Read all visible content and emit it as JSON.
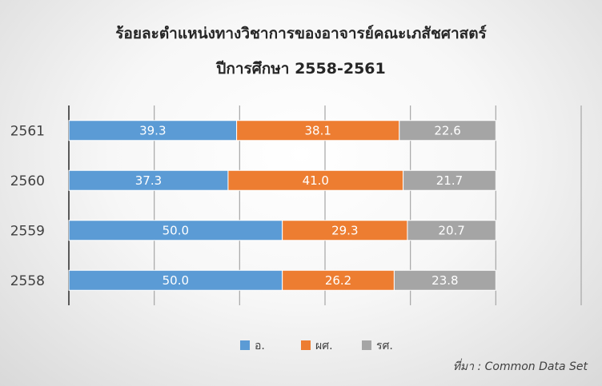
{
  "chart_data": {
    "type": "bar",
    "orientation": "horizontal",
    "stacked": "percent",
    "title": [
      "ร้อยละตำแหน่งทางวิชาการของอาจารย์คณะเภสัชศาสตร์",
      "ปีการศึกษา 2558-2561"
    ],
    "categories": [
      "2561",
      "2560",
      "2559",
      "2558"
    ],
    "series": [
      {
        "name": "อ.",
        "color": "#5b9bd5",
        "values": [
          39.3,
          37.3,
          50.0,
          50.0
        ]
      },
      {
        "name": "ผศ.",
        "color": "#ed7d31",
        "values": [
          38.1,
          41.0,
          29.3,
          26.2
        ]
      },
      {
        "name": "รศ.",
        "color": "#a5a5a5",
        "values": [
          22.6,
          21.7,
          20.7,
          23.8
        ]
      }
    ],
    "xlim": [
      0,
      120
    ],
    "grid": true,
    "legend_position": "bottom"
  },
  "source_note": "ที่มา : Common Data Set"
}
